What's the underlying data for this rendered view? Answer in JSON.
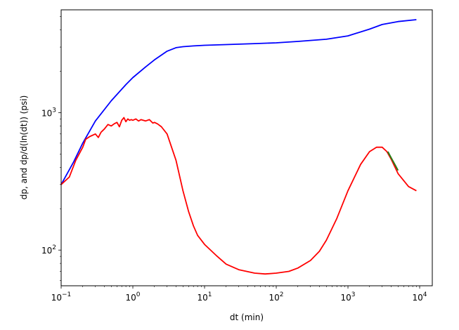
{
  "chart_data": {
    "type": "line",
    "title": "",
    "xlabel": "dt (min)",
    "ylabel": "dp, and dp/d(ln(dt)) (psi)",
    "xscale": "log",
    "yscale": "log",
    "xlim": [
      0.1,
      15000
    ],
    "ylim": [
      55,
      5600
    ],
    "grid": false,
    "legend": "none",
    "x_ticks": [
      {
        "value": 0.1,
        "base": "10",
        "exp": "−1"
      },
      {
        "value": 1,
        "base": "10",
        "exp": "0"
      },
      {
        "value": 10,
        "base": "10",
        "exp": "1"
      },
      {
        "value": 100,
        "base": "10",
        "exp": "2"
      },
      {
        "value": 1000,
        "base": "10",
        "exp": "3"
      },
      {
        "value": 10000,
        "base": "10",
        "exp": "4"
      }
    ],
    "y_ticks": [
      {
        "value": 100,
        "base": "10",
        "exp": "2"
      },
      {
        "value": 1000,
        "base": "10",
        "exp": "3"
      }
    ],
    "series": [
      {
        "color": "#0000ff",
        "x": [
          0.1,
          0.15,
          0.2,
          0.3,
          0.5,
          0.8,
          1,
          1.5,
          2,
          3,
          4,
          5,
          7,
          10,
          20,
          50,
          100,
          200,
          500,
          1000,
          2000,
          3000,
          5000,
          9000
        ],
        "y": [
          300,
          440,
          600,
          870,
          1220,
          1600,
          1800,
          2150,
          2420,
          2800,
          2970,
          3020,
          3060,
          3090,
          3130,
          3180,
          3220,
          3300,
          3420,
          3620,
          4050,
          4380,
          4600,
          4750
        ]
      },
      {
        "color": "#ff0000",
        "x": [
          0.1,
          0.13,
          0.16,
          0.2,
          0.22,
          0.25,
          0.3,
          0.33,
          0.36,
          0.4,
          0.45,
          0.5,
          0.55,
          0.6,
          0.65,
          0.7,
          0.75,
          0.8,
          0.85,
          0.9,
          0.95,
          1,
          1.1,
          1.2,
          1.3,
          1.5,
          1.7,
          1.9,
          2,
          2.2,
          2.5,
          3,
          4,
          5,
          6,
          7,
          8,
          10,
          15,
          20,
          30,
          50,
          70,
          100,
          150,
          200,
          300,
          400,
          500,
          700,
          1000,
          1500,
          2000,
          2500,
          3000,
          3500,
          4000,
          5000,
          7000,
          9000
        ],
        "y": [
          300,
          340,
          450,
          560,
          640,
          670,
          700,
          660,
          720,
          760,
          820,
          800,
          830,
          850,
          790,
          880,
          920,
          860,
          900,
          880,
          890,
          880,
          900,
          870,
          890,
          870,
          890,
          840,
          850,
          830,
          790,
          700,
          450,
          270,
          190,
          150,
          128,
          110,
          90,
          79,
          72,
          68,
          67,
          68,
          70,
          74,
          84,
          98,
          118,
          170,
          270,
          420,
          520,
          560,
          560,
          520,
          460,
          360,
          290,
          270
        ]
      },
      {
        "color": "#2a7d18",
        "x": [
          3600,
          4000,
          4500,
          5000
        ],
        "y": [
          520,
          470,
          420,
          380
        ]
      }
    ]
  }
}
